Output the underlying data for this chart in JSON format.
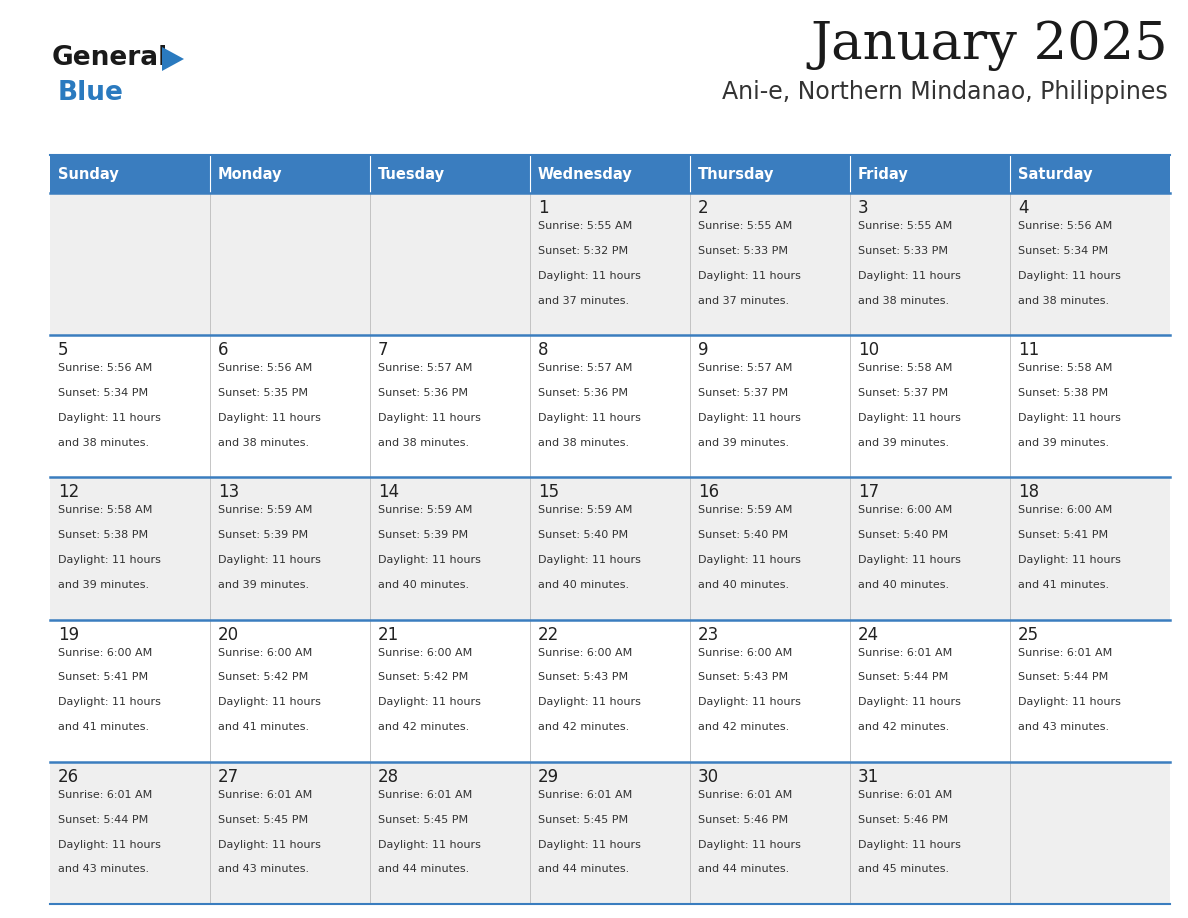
{
  "title": "January 2025",
  "subtitle": "Ani-e, Northern Mindanao, Philippines",
  "days_of_week": [
    "Sunday",
    "Monday",
    "Tuesday",
    "Wednesday",
    "Thursday",
    "Friday",
    "Saturday"
  ],
  "header_bg": "#3a7dbf",
  "header_text": "#ffffff",
  "row_bg_light": "#efefef",
  "row_bg_white": "#ffffff",
  "divider_color": "#3a7dbf",
  "day_num_color": "#222222",
  "info_color": "#333333",
  "title_color": "#1a1a1a",
  "subtitle_color": "#333333",
  "logo_general_color": "#1a1a1a",
  "logo_blue_color": "#2a7abf",
  "fig_width": 11.88,
  "fig_height": 9.18,
  "dpi": 100,
  "weeks": [
    [
      {
        "day": null
      },
      {
        "day": null
      },
      {
        "day": null
      },
      {
        "day": 1,
        "sunrise": "5:55 AM",
        "sunset": "5:32 PM",
        "daylight": "11 hours and 37 minutes"
      },
      {
        "day": 2,
        "sunrise": "5:55 AM",
        "sunset": "5:33 PM",
        "daylight": "11 hours and 37 minutes"
      },
      {
        "day": 3,
        "sunrise": "5:55 AM",
        "sunset": "5:33 PM",
        "daylight": "11 hours and 38 minutes"
      },
      {
        "day": 4,
        "sunrise": "5:56 AM",
        "sunset": "5:34 PM",
        "daylight": "11 hours and 38 minutes"
      }
    ],
    [
      {
        "day": 5,
        "sunrise": "5:56 AM",
        "sunset": "5:34 PM",
        "daylight": "11 hours and 38 minutes"
      },
      {
        "day": 6,
        "sunrise": "5:56 AM",
        "sunset": "5:35 PM",
        "daylight": "11 hours and 38 minutes"
      },
      {
        "day": 7,
        "sunrise": "5:57 AM",
        "sunset": "5:36 PM",
        "daylight": "11 hours and 38 minutes"
      },
      {
        "day": 8,
        "sunrise": "5:57 AM",
        "sunset": "5:36 PM",
        "daylight": "11 hours and 38 minutes"
      },
      {
        "day": 9,
        "sunrise": "5:57 AM",
        "sunset": "5:37 PM",
        "daylight": "11 hours and 39 minutes"
      },
      {
        "day": 10,
        "sunrise": "5:58 AM",
        "sunset": "5:37 PM",
        "daylight": "11 hours and 39 minutes"
      },
      {
        "day": 11,
        "sunrise": "5:58 AM",
        "sunset": "5:38 PM",
        "daylight": "11 hours and 39 minutes"
      }
    ],
    [
      {
        "day": 12,
        "sunrise": "5:58 AM",
        "sunset": "5:38 PM",
        "daylight": "11 hours and 39 minutes"
      },
      {
        "day": 13,
        "sunrise": "5:59 AM",
        "sunset": "5:39 PM",
        "daylight": "11 hours and 39 minutes"
      },
      {
        "day": 14,
        "sunrise": "5:59 AM",
        "sunset": "5:39 PM",
        "daylight": "11 hours and 40 minutes"
      },
      {
        "day": 15,
        "sunrise": "5:59 AM",
        "sunset": "5:40 PM",
        "daylight": "11 hours and 40 minutes"
      },
      {
        "day": 16,
        "sunrise": "5:59 AM",
        "sunset": "5:40 PM",
        "daylight": "11 hours and 40 minutes"
      },
      {
        "day": 17,
        "sunrise": "6:00 AM",
        "sunset": "5:40 PM",
        "daylight": "11 hours and 40 minutes"
      },
      {
        "day": 18,
        "sunrise": "6:00 AM",
        "sunset": "5:41 PM",
        "daylight": "11 hours and 41 minutes"
      }
    ],
    [
      {
        "day": 19,
        "sunrise": "6:00 AM",
        "sunset": "5:41 PM",
        "daylight": "11 hours and 41 minutes"
      },
      {
        "day": 20,
        "sunrise": "6:00 AM",
        "sunset": "5:42 PM",
        "daylight": "11 hours and 41 minutes"
      },
      {
        "day": 21,
        "sunrise": "6:00 AM",
        "sunset": "5:42 PM",
        "daylight": "11 hours and 42 minutes"
      },
      {
        "day": 22,
        "sunrise": "6:00 AM",
        "sunset": "5:43 PM",
        "daylight": "11 hours and 42 minutes"
      },
      {
        "day": 23,
        "sunrise": "6:00 AM",
        "sunset": "5:43 PM",
        "daylight": "11 hours and 42 minutes"
      },
      {
        "day": 24,
        "sunrise": "6:01 AM",
        "sunset": "5:44 PM",
        "daylight": "11 hours and 42 minutes"
      },
      {
        "day": 25,
        "sunrise": "6:01 AM",
        "sunset": "5:44 PM",
        "daylight": "11 hours and 43 minutes"
      }
    ],
    [
      {
        "day": 26,
        "sunrise": "6:01 AM",
        "sunset": "5:44 PM",
        "daylight": "11 hours and 43 minutes"
      },
      {
        "day": 27,
        "sunrise": "6:01 AM",
        "sunset": "5:45 PM",
        "daylight": "11 hours and 43 minutes"
      },
      {
        "day": 28,
        "sunrise": "6:01 AM",
        "sunset": "5:45 PM",
        "daylight": "11 hours and 44 minutes"
      },
      {
        "day": 29,
        "sunrise": "6:01 AM",
        "sunset": "5:45 PM",
        "daylight": "11 hours and 44 minutes"
      },
      {
        "day": 30,
        "sunrise": "6:01 AM",
        "sunset": "5:46 PM",
        "daylight": "11 hours and 44 minutes"
      },
      {
        "day": 31,
        "sunrise": "6:01 AM",
        "sunset": "5:46 PM",
        "daylight": "11 hours and 45 minutes"
      },
      {
        "day": null
      }
    ]
  ]
}
